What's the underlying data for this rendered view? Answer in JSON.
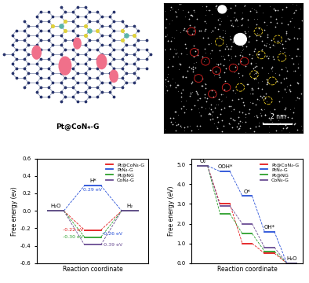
{
  "illustration": {
    "caption": "Pt@CoN₄-G"
  },
  "micrograph": {
    "scale_bar": "2 nm"
  },
  "chart_data": [
    {
      "type": "step",
      "x_label": "Reaction coordinate",
      "y_label": "Free energy (ev)",
      "categories": [
        "H₂O",
        "H*",
        "H₂"
      ],
      "series": [
        {
          "name": "Pt@CoN₄-G",
          "color": "#e41a1c",
          "values": [
            0,
            -0.22,
            0
          ]
        },
        {
          "name": "PtN₄-G",
          "color": "#2850d8",
          "values": [
            0,
            0.29,
            0
          ]
        },
        {
          "name": "Pt@NG",
          "color": "#2ca02c",
          "values": [
            0,
            -0.3,
            0
          ]
        },
        {
          "name": "CoN₄-G",
          "color": "#6a4c93",
          "values": [
            0,
            -0.39,
            0
          ]
        }
      ],
      "annotations": [
        {
          "x": "H*",
          "y": 0.29,
          "text": "0.29 eV",
          "color": "#2850d8"
        },
        {
          "x": "H*",
          "y": -0.22,
          "text": "-0.22 eV",
          "color": "#e41a1c"
        },
        {
          "x": "H*",
          "y": -0.26,
          "text": "-0.26 eV",
          "color": "#2850d8"
        },
        {
          "x": "H*",
          "y": -0.3,
          "text": "-0.30 eV",
          "color": "#2ca02c"
        },
        {
          "x": "H*",
          "y": -0.39,
          "text": "-0.39 eV",
          "color": "#6a4c93"
        }
      ],
      "ylim": [
        -0.6,
        0.6
      ],
      "yticks": [
        -0.6,
        -0.4,
        -0.2,
        0.0,
        0.2,
        0.4,
        0.6
      ],
      "legend": "upper right",
      "tick_labels": "y"
    },
    {
      "type": "step",
      "x_label": "Reaction coordinate",
      "y_label": "Free energy (eV)",
      "categories": [
        "O₂",
        "OOH*",
        "O*",
        "OH*",
        "H₂O"
      ],
      "series": [
        {
          "name": "Pt@CoN₄-G",
          "color": "#e41a1c",
          "values": [
            4.92,
            3.0,
            1.0,
            0.5,
            0
          ]
        },
        {
          "name": "PtN₄-G",
          "color": "#2850d8",
          "values": [
            4.92,
            4.65,
            3.4,
            1.6,
            0
          ]
        },
        {
          "name": "Pt@NG",
          "color": "#2ca02c",
          "values": [
            4.92,
            2.5,
            1.5,
            0.6,
            0
          ]
        },
        {
          "name": "CoN₄-G",
          "color": "#6a4c93",
          "values": [
            4.92,
            2.9,
            2.0,
            0.8,
            0
          ]
        }
      ],
      "ylim": [
        0,
        5.3
      ],
      "yticks": [
        0.0,
        1.0,
        2.0,
        3.0,
        4.0,
        5.0
      ],
      "legend": "upper right",
      "tick_labels": "y"
    }
  ]
}
